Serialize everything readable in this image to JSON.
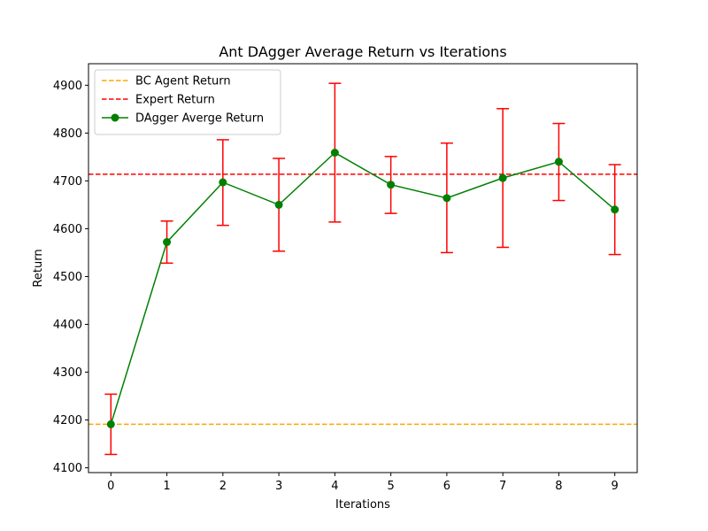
{
  "chart_data": {
    "type": "line",
    "title": "Ant DAgger Average Return vs Iterations",
    "xlabel": "Iterations",
    "ylabel": "Return",
    "xlim": [
      -0.4,
      9.4
    ],
    "ylim": [
      4090,
      4945
    ],
    "xticks": [
      0,
      1,
      2,
      3,
      4,
      5,
      6,
      7,
      8,
      9
    ],
    "yticks": [
      4100,
      4200,
      4300,
      4400,
      4500,
      4600,
      4700,
      4800,
      4900
    ],
    "grid": false,
    "legend_position": "top-left",
    "series": [
      {
        "name": " DAgger Averge Return",
        "kind": "errorbar",
        "color": "#008000",
        "error_color": "#ff0000",
        "x": [
          0,
          1,
          2,
          3,
          4,
          5,
          6,
          7,
          8,
          9
        ],
        "y": [
          4191,
          4572,
          4697,
          4650,
          4759,
          4692,
          4664,
          4706,
          4740,
          4640
        ],
        "err_low": [
          4128,
          4528,
          4607,
          4553,
          4614,
          4632,
          4550,
          4561,
          4659,
          4546
        ],
        "err_high": [
          4254,
          4616,
          4786,
          4747,
          4904,
          4751,
          4779,
          4851,
          4820,
          4734
        ]
      },
      {
        "name": "BC Agent Return",
        "kind": "hline",
        "color": "#ffa500",
        "y": 4191
      },
      {
        "name": "Expert Return",
        "kind": "hline",
        "color": "#ff0000",
        "y": 4714
      }
    ]
  }
}
